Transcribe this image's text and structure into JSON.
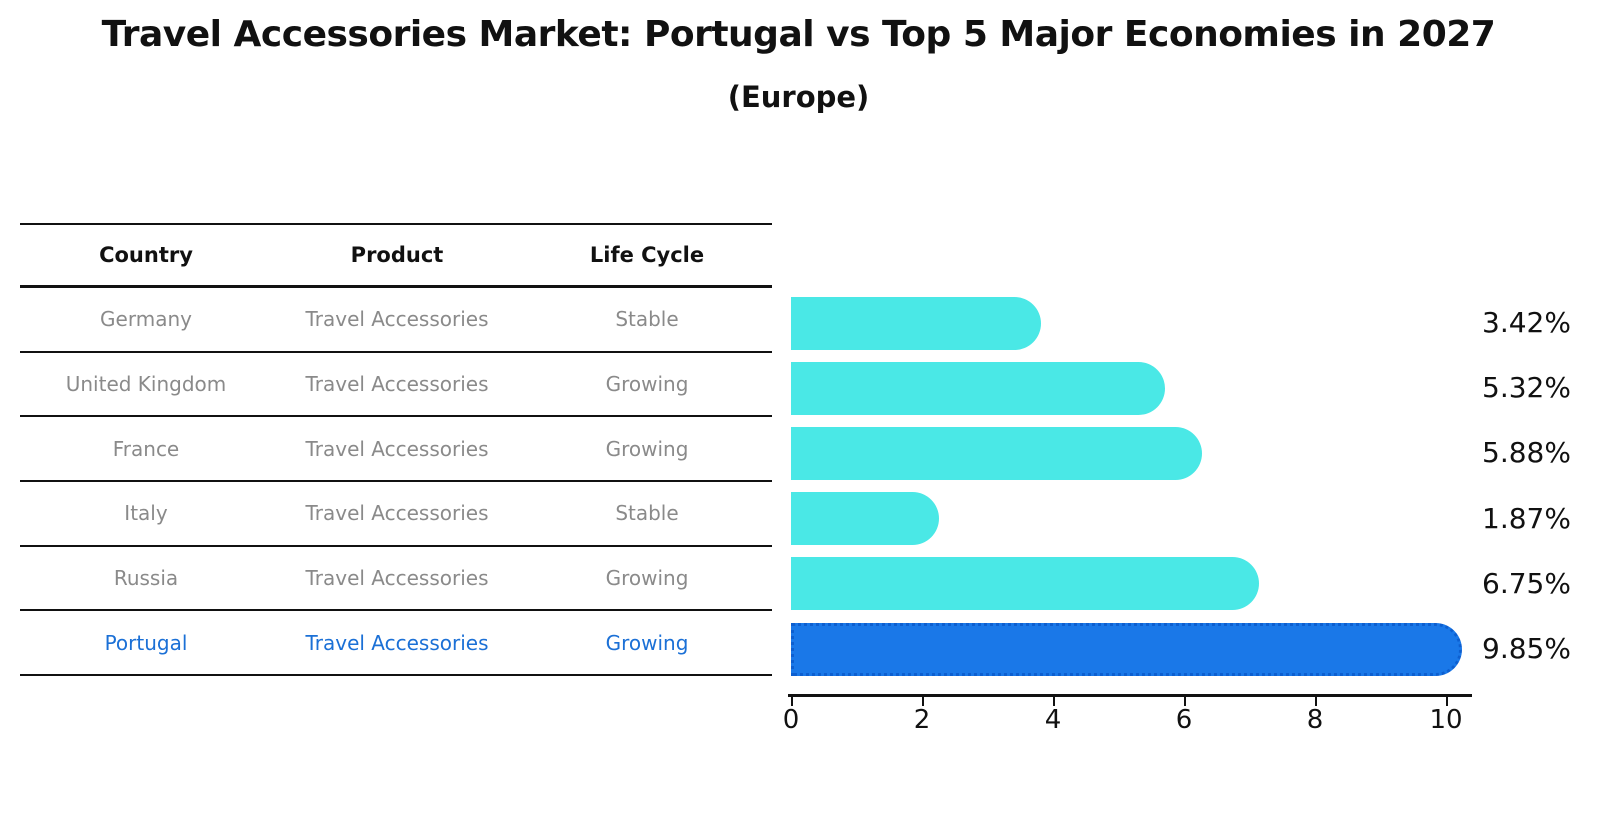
{
  "title": "Travel Accessories Market: Portugal vs Top 5 Major Economies in 2027",
  "subtitle": "(Europe)",
  "table": {
    "headers": [
      "Country",
      "Product",
      "Life Cycle"
    ],
    "rows": [
      {
        "country": "Germany",
        "product": "Travel Accessories",
        "life_cycle": "Stable"
      },
      {
        "country": "United Kingdom",
        "product": "Travel Accessories",
        "life_cycle": "Growing"
      },
      {
        "country": "France",
        "product": "Travel Accessories",
        "life_cycle": "Growing"
      },
      {
        "country": "Italy",
        "product": "Travel Accessories",
        "life_cycle": "Stable"
      },
      {
        "country": "Russia",
        "product": "Travel Accessories",
        "life_cycle": "Growing"
      },
      {
        "country": "Portugal",
        "product": "Travel Accessories",
        "life_cycle": "Growing"
      }
    ],
    "highlight_row": "Portugal"
  },
  "chart_data": {
    "type": "bar",
    "orientation": "horizontal",
    "title": "Travel Accessories Market: Portugal vs Top 5 Major Economies in 2027 (Europe)",
    "categories": [
      "Germany",
      "United Kingdom",
      "France",
      "Italy",
      "Russia",
      "Portugal"
    ],
    "values": [
      3.42,
      5.32,
      5.88,
      1.87,
      6.75,
      9.85
    ],
    "value_labels": [
      "3.42%",
      "5.32%",
      "5.88%",
      "1.87%",
      "6.75%",
      "9.85%"
    ],
    "x_ticks": [
      "0",
      "2",
      "4",
      "6",
      "8",
      "10"
    ],
    "x_tick_values": [
      0,
      2,
      4,
      6,
      8,
      10
    ],
    "xlim": [
      0,
      10.4
    ],
    "grid": false,
    "legend": false,
    "highlight_index": 5,
    "colors": {
      "bar": "#4AE8E6",
      "highlight_bar": "#1A78E8",
      "highlight_edge": "#0D5FD0",
      "value_label": "#111111",
      "table_header_text": "#111111",
      "table_row_text": "#8a8a8a",
      "highlight_row_text": "#1B70D6"
    }
  }
}
